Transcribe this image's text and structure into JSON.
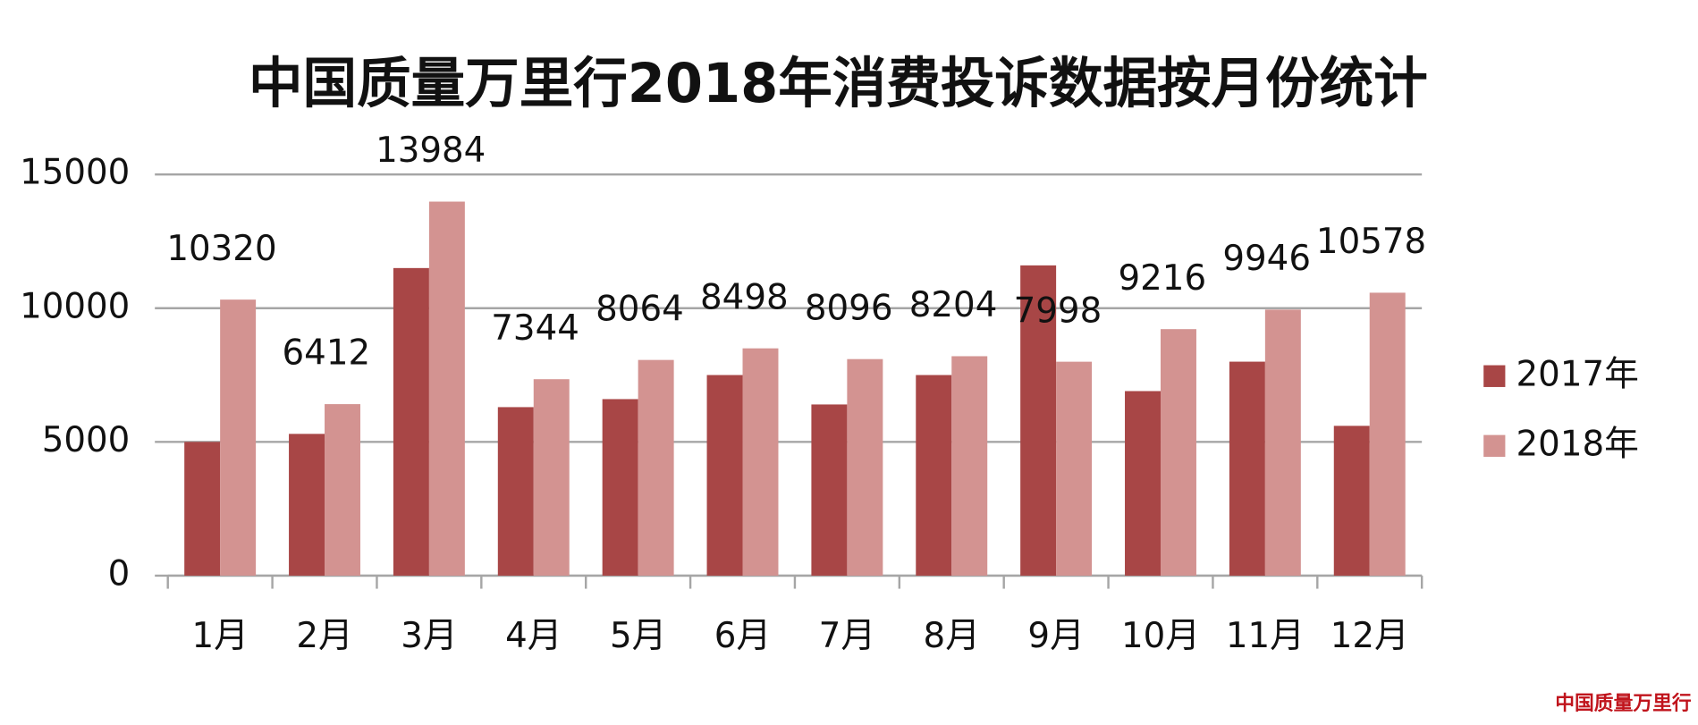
{
  "chart_data": {
    "type": "bar",
    "title": "中国质量万里行2018年消费投诉数据按月份统计",
    "categories": [
      "1月",
      "2月",
      "3月",
      "4月",
      "5月",
      "6月",
      "7月",
      "8月",
      "9月",
      "10月",
      "11月",
      "12月"
    ],
    "series": [
      {
        "name": "2017年",
        "color": "#a84646",
        "values": [
          5000,
          5300,
          11500,
          6300,
          6600,
          7500,
          6400,
          7500,
          11600,
          6900,
          8000,
          5600
        ]
      },
      {
        "name": "2018年",
        "color": "#d39391",
        "values": [
          10320,
          6412,
          13984,
          7344,
          8064,
          8498,
          8096,
          8204,
          7998,
          9216,
          9946,
          10578
        ],
        "show_labels": true
      }
    ],
    "ylim": [
      0,
      15000
    ],
    "yticks": [
      0,
      5000,
      10000,
      15000
    ],
    "grid": true,
    "legend": "right",
    "watermark": "中国质量万里行"
  }
}
